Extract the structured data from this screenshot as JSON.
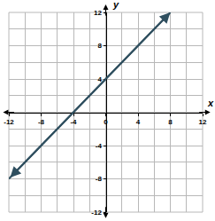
{
  "chart_data": {
    "type": "line",
    "x_label": "x",
    "y_label": "y",
    "xlim": [
      -12,
      12
    ],
    "ylim": [
      -12,
      12
    ],
    "xticks": [
      -12,
      -8,
      -4,
      0,
      4,
      8,
      12
    ],
    "yticks": [
      -12,
      -8,
      -4,
      4,
      8,
      12
    ],
    "grid": true,
    "x": [
      -12,
      8
    ],
    "series": [
      {
        "values": [
          -8,
          12
        ],
        "color": "#2f4f5f",
        "line_style": "solid",
        "marker": "arrow"
      }
    ]
  }
}
